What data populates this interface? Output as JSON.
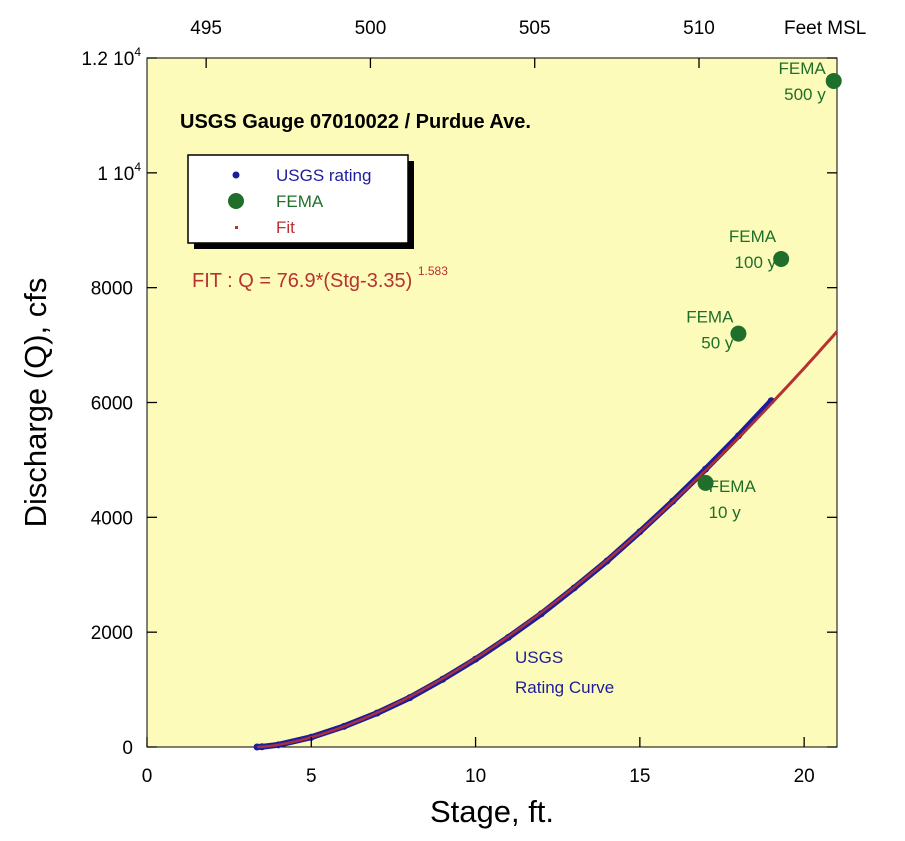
{
  "chart_data": {
    "type": "scatter",
    "title": "USGS Gauge 07010022 / Purdue Ave.",
    "xlabel": "Stage, ft.",
    "ylabel": "Discharge (Q), cfs",
    "xlim": [
      0,
      21
    ],
    "ylim": [
      0,
      12000
    ],
    "x_ticks": [
      0,
      5,
      10,
      15,
      20
    ],
    "x_tick_labels": [
      "0",
      "5",
      "10",
      "15",
      "20"
    ],
    "y_ticks": [
      0,
      2000,
      4000,
      6000,
      8000,
      10000,
      12000
    ],
    "y_tick_labels": [
      {
        "base": "0",
        "exp": ""
      },
      {
        "base": "2000",
        "exp": ""
      },
      {
        "base": "4000",
        "exp": ""
      },
      {
        "base": "6000",
        "exp": ""
      },
      {
        "base": "8000",
        "exp": ""
      },
      {
        "base": "1 10",
        "exp": "4"
      },
      {
        "base": "1.2 10",
        "exp": "4"
      }
    ],
    "secondary_x_axis": {
      "label": "Feet MSL",
      "ticks": [
        {
          "label": "495",
          "stage": 1.8
        },
        {
          "label": "500",
          "stage": 6.8
        },
        {
          "label": "505",
          "stage": 11.8
        },
        {
          "label": "510",
          "stage": 16.8
        }
      ]
    },
    "background_color": "#fdfbb9",
    "grid": false,
    "legend": {
      "position": "upper-left",
      "entries": [
        {
          "name": "USGS rating",
          "color": "#1d1d9c",
          "marker": "small-dot"
        },
        {
          "name": "FEMA",
          "color": "#1f6f2a",
          "marker": "large-dot"
        },
        {
          "name": "Fit",
          "color": "#b83232",
          "marker": "tiny-dot"
        }
      ]
    },
    "series": [
      {
        "name": "USGS rating",
        "color": "#1d1d9c",
        "x": [
          3.35,
          3.5,
          4,
          5,
          6,
          7,
          8,
          9,
          10,
          11,
          12,
          13,
          14,
          15,
          16,
          17,
          18,
          19
        ],
        "y": [
          0,
          4,
          38,
          170,
          360,
          590,
          860,
          1180,
          1530,
          1910,
          2320,
          2770,
          3240,
          3750,
          4280,
          4840,
          5420,
          6030
        ]
      },
      {
        "name": "FEMA",
        "color": "#1f6f2a",
        "x": [
          17.0,
          18.0,
          19.3,
          20.9
        ],
        "y": [
          4600,
          7200,
          8500,
          11600
        ],
        "labels": [
          [
            "FEMA",
            "10 y"
          ],
          [
            "FEMA",
            "50 y"
          ],
          [
            "FEMA",
            "100 y"
          ],
          [
            "FEMA",
            "500 y"
          ]
        ]
      },
      {
        "name": "Fit",
        "color": "#b83232",
        "coefficient": 76.9,
        "offset": 3.35,
        "exponent": 1.583,
        "x_range": [
          3.35,
          21
        ]
      }
    ],
    "annotations": {
      "fit_equation": {
        "text": "FIT :   Q = 76.9*(Stg-3.35)",
        "superscript": "1.583"
      },
      "rating_curve_label": [
        "USGS",
        "Rating Curve"
      ]
    }
  }
}
